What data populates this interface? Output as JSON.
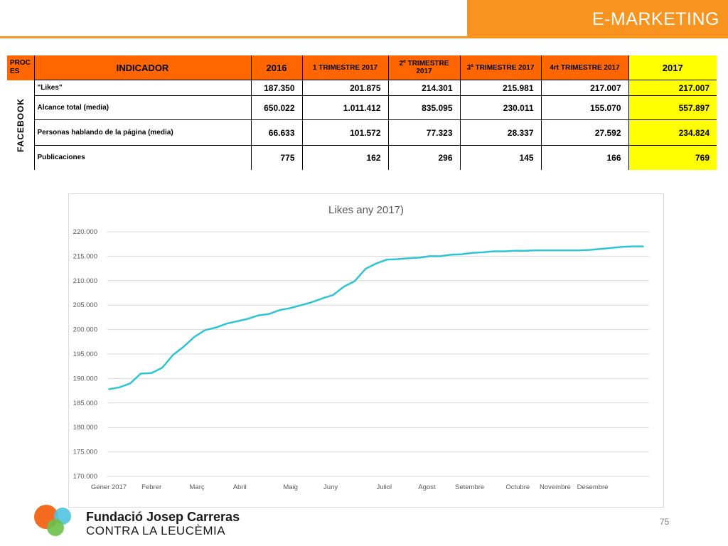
{
  "header": {
    "title": "E-MARKETING"
  },
  "table": {
    "headers": {
      "proces": "PROC ES",
      "indicador": "INDICADOR",
      "y2016": "2016",
      "q1": "1 TRIMESTRE 2017",
      "q2": "2º TRIMESTRE 2017",
      "q3": "3º TRIMESTRE 2017",
      "q4": "4rt TRIMESTRE 2017",
      "y2017": "2017"
    },
    "section_label": "FACEBOOK",
    "rows": [
      {
        "label": "\"Likes\"",
        "v2016": "187.350",
        "q1": "201.875",
        "q2": "214.301",
        "q3": "215.981",
        "q4": "217.007",
        "v2017": "217.007"
      },
      {
        "label": "Alcance total (media)",
        "v2016": "650.022",
        "q1": "1.011.412",
        "q2": "835.095",
        "q3": "230.011",
        "q4": "155.070",
        "v2017": "557.897"
      },
      {
        "label": "Personas hablando de la página (media)",
        "v2016": "66.633",
        "q1": "101.572",
        "q2": "77.323",
        "q3": "28.337",
        "q4": "27.592",
        "v2017": "234.824"
      },
      {
        "label": "Publicaciones",
        "v2016": "775",
        "q1": "162",
        "q2": "296",
        "q3": "145",
        "q4": "166",
        "v2017": "769"
      }
    ]
  },
  "chart_data": {
    "type": "line",
    "title": "Likes  any 2017)",
    "xlabel": "",
    "ylabel": "",
    "ylim": [
      170000,
      220000
    ],
    "yticks": [
      "170.000",
      "175.000",
      "180.000",
      "185.000",
      "190.000",
      "195.000",
      "200.000",
      "205.000",
      "210.000",
      "215.000",
      "220.000"
    ],
    "x_tick_labels": [
      "Gener 2017",
      "Febrer",
      "Març",
      "Abril",
      "Maig",
      "Juny",
      "Juliol",
      "Agost",
      "Setembre",
      "Octubre",
      "Novembre",
      "Desembre"
    ],
    "grid": true,
    "line_color": "#2ec4d6",
    "series": [
      {
        "values": [
          187800,
          188200,
          189000,
          191000,
          191100,
          192200,
          194800,
          196500,
          198500,
          199900,
          200400,
          201200,
          201700,
          202200,
          202900,
          203200,
          204000,
          204400,
          205000,
          205600,
          206400,
          207100,
          208800,
          209900,
          212400,
          213500,
          214300,
          214400,
          214600,
          214700,
          215000,
          215000,
          215300,
          215400,
          215700,
          215800,
          216000,
          216000,
          216100,
          216100,
          216200,
          216200,
          216200,
          216200,
          216200,
          216300,
          216500,
          216700,
          216900,
          217000,
          217007
        ]
      }
    ]
  },
  "footer": {
    "org_name": "Fundació Josep Carreras",
    "org_subtitle": "CONTRA LA LEUCÈMIA",
    "page_number": "75"
  }
}
